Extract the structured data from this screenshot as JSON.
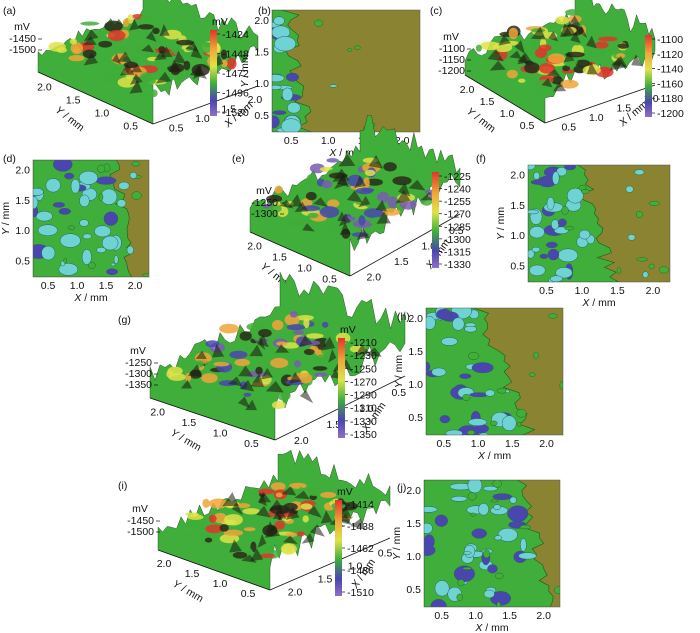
{
  "figure": {
    "axis_labels": {
      "x": "X / mm",
      "y": "Y / mm",
      "z": "mV"
    }
  },
  "colors": {
    "plateau": "#8a8432",
    "green": "#3fae3a",
    "cyan": "#6fd3d3",
    "blue": "#4a46b0",
    "purple": "#7a5bb5",
    "red": "#e2342a",
    "orange": "#f0a53a",
    "yellow": "#dfe34a",
    "dark": "#2a2a1a"
  },
  "chart_data": [
    {
      "id": "a",
      "label": "(a)",
      "type": "surface3d",
      "colorbar_title": "mV",
      "colorbar_ticks": [
        "-1424",
        "-1448",
        "-1472",
        "-1496",
        "-1520"
      ],
      "z_ticks": [
        "-1450",
        "-1500"
      ],
      "y_ticks": [
        "2.0",
        "1.5",
        "1.0",
        "0.5"
      ],
      "x_ticks": [
        "0.5",
        "1.0",
        "1.5",
        "2.0"
      ],
      "ylabel": "Y / mm",
      "xlabel": "X / mm",
      "zlabel": "mV"
    },
    {
      "id": "b",
      "label": "(b)",
      "type": "contour",
      "x_ticks": [
        "0.5",
        "1.0",
        "1.5",
        "2.0"
      ],
      "y_ticks": [
        "2.0",
        "1.5",
        "1.0",
        "0.5"
      ],
      "xlabel": "X / mm",
      "ylabel": "Y / mm"
    },
    {
      "id": "c",
      "label": "(c)",
      "type": "surface3d",
      "colorbar_ticks": [
        "-1100",
        "-1120",
        "-1140",
        "-1160",
        "-1180",
        "-1200"
      ],
      "z_ticks": [
        "-1100",
        "-1150",
        "-1200"
      ],
      "y_ticks": [
        "2.0",
        "1.5",
        "1.0",
        "0.5"
      ],
      "x_ticks": [
        "0.5",
        "1.0",
        "1.5",
        "2.0"
      ],
      "ylabel": "Y / mm",
      "xlabel": "X / mm",
      "zlabel": "mV"
    },
    {
      "id": "d",
      "label": "(d)",
      "type": "contour",
      "x_ticks": [
        "0.5",
        "1.0",
        "1.5",
        "2.0"
      ],
      "y_ticks": [
        "2.0",
        "1.5",
        "1.0",
        "0.5"
      ],
      "xlabel": "X / mm",
      "ylabel": "Y / mm"
    },
    {
      "id": "e",
      "label": "(e)",
      "type": "surface3d",
      "colorbar_ticks": [
        "-1225",
        "-1240",
        "-1255",
        "-1270",
        "-1285",
        "-1300",
        "-1315",
        "-1330"
      ],
      "z_ticks": [
        "-1250",
        "-1300"
      ],
      "y_ticks": [
        "2.0",
        "1.5",
        "1.0",
        "0.5"
      ],
      "x_ticks": [
        "2.0",
        "1.5",
        "1.0",
        "0.5"
      ],
      "ylabel": "Y / mm",
      "xlabel": "X / mm",
      "zlabel": "mV"
    },
    {
      "id": "f",
      "label": "(f)",
      "type": "contour",
      "x_ticks": [
        "0.5",
        "1.0",
        "1.5",
        "2.0"
      ],
      "y_ticks": [
        "2.0",
        "1.5",
        "1.0",
        "0.5"
      ],
      "xlabel": "X / mm",
      "ylabel": "Y / mm"
    },
    {
      "id": "g",
      "label": "(g)",
      "type": "surface3d",
      "colorbar_title": "mV",
      "colorbar_ticks": [
        "-1210",
        "-1230",
        "-1250",
        "-1270",
        "-1290",
        "-1310",
        "-1330",
        "-1350"
      ],
      "z_ticks": [
        "-1250",
        "-1300",
        "-1350"
      ],
      "y_ticks": [
        "2.0",
        "1.5",
        "1.0",
        "0.5"
      ],
      "x_ticks": [
        "2.0",
        "1.5",
        "1.0",
        "0.5"
      ],
      "ylabel": "Y / mm",
      "xlabel": "X / mm",
      "zlabel": "mV"
    },
    {
      "id": "h",
      "label": "(h)",
      "type": "contour",
      "x_ticks": [
        "0.5",
        "1.0",
        "1.5",
        "2.0"
      ],
      "y_ticks": [
        "2.0",
        "1.5",
        "1.0",
        "0.5"
      ],
      "xlabel": "X / mm",
      "ylabel": "Y / mm"
    },
    {
      "id": "i",
      "label": "(i)",
      "type": "surface3d",
      "colorbar_title": "mV",
      "colorbar_ticks": [
        "-1414",
        "-1438",
        "-1462",
        "-1486",
        "-1510"
      ],
      "z_ticks": [
        "-1450",
        "-1500"
      ],
      "y_ticks": [
        "2.0",
        "1.5",
        "1.0",
        "0.5"
      ],
      "x_ticks": [
        "2.0",
        "1.5",
        "1.0",
        "0.5"
      ],
      "ylabel": "Y / mm",
      "xlabel": "X / mm",
      "zlabel": "mV"
    },
    {
      "id": "j",
      "label": "(j)",
      "type": "contour",
      "x_ticks": [
        "0.5",
        "1.0",
        "1.5",
        "2.0"
      ],
      "y_ticks": [
        "2.0",
        "1.5",
        "1.0",
        "0.5"
      ],
      "xlabel": "X / mm",
      "ylabel": "Y / mm"
    }
  ]
}
